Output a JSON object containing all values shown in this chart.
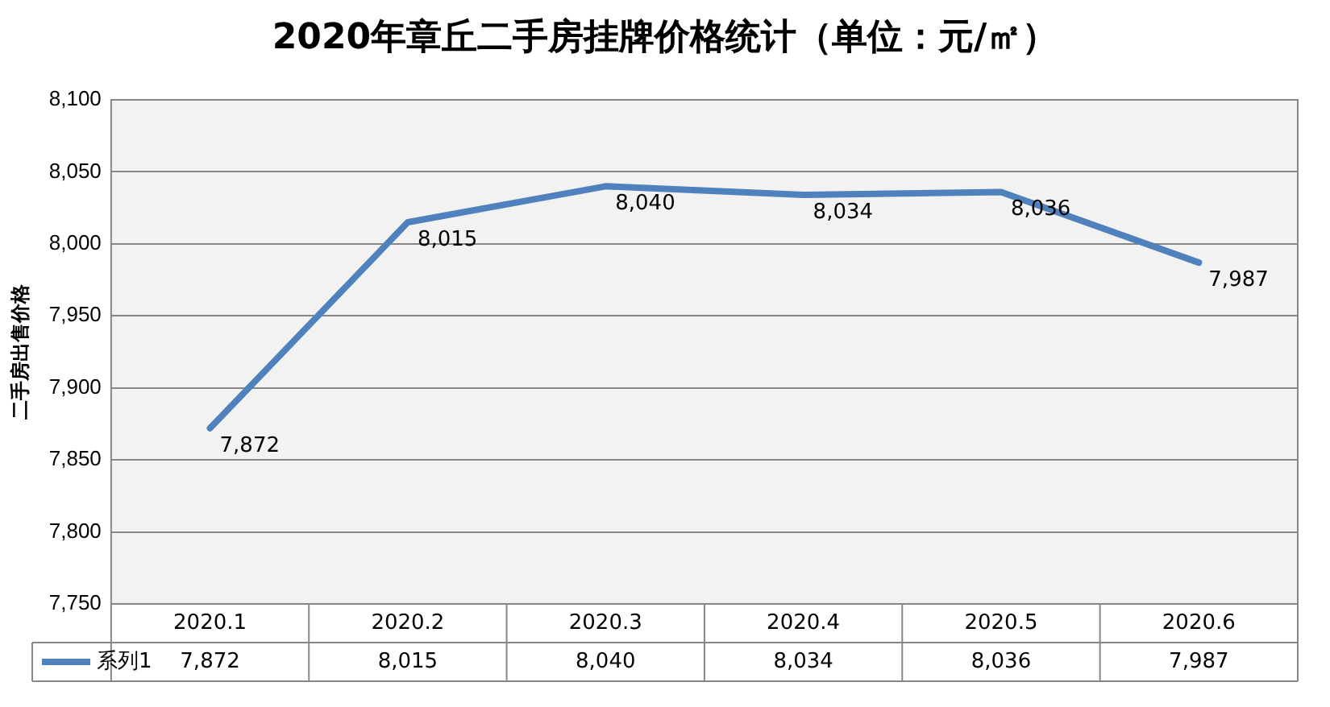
{
  "chart_data": {
    "type": "line",
    "title": "2020年章丘二手房挂牌价格统计（单位：元/㎡）",
    "ylabel": "二手房出售价格",
    "categories": [
      "2020.1",
      "2020.2",
      "2020.3",
      "2020.4",
      "2020.5",
      "2020.6"
    ],
    "series": [
      {
        "name": "系列1",
        "color": "#4f81bd",
        "values": [
          7872,
          8015,
          8040,
          8034,
          8036,
          7987
        ],
        "value_labels": [
          "7,872",
          "8,015",
          "8,040",
          "8,034",
          "8,036",
          "7,987"
        ]
      }
    ],
    "ylim": [
      7750,
      8100
    ],
    "yticks": [
      {
        "value": 7750,
        "label": "7,750"
      },
      {
        "value": 7800,
        "label": "7,800"
      },
      {
        "value": 7850,
        "label": "7,850"
      },
      {
        "value": 7900,
        "label": "7,900"
      },
      {
        "value": 7950,
        "label": "7,950"
      },
      {
        "value": 8000,
        "label": "8,000"
      },
      {
        "value": 8050,
        "label": "8,050"
      },
      {
        "value": 8100,
        "label": "8,100"
      }
    ],
    "grid": "y",
    "legend": "bottom",
    "marker": "none",
    "line_style": "solid"
  }
}
